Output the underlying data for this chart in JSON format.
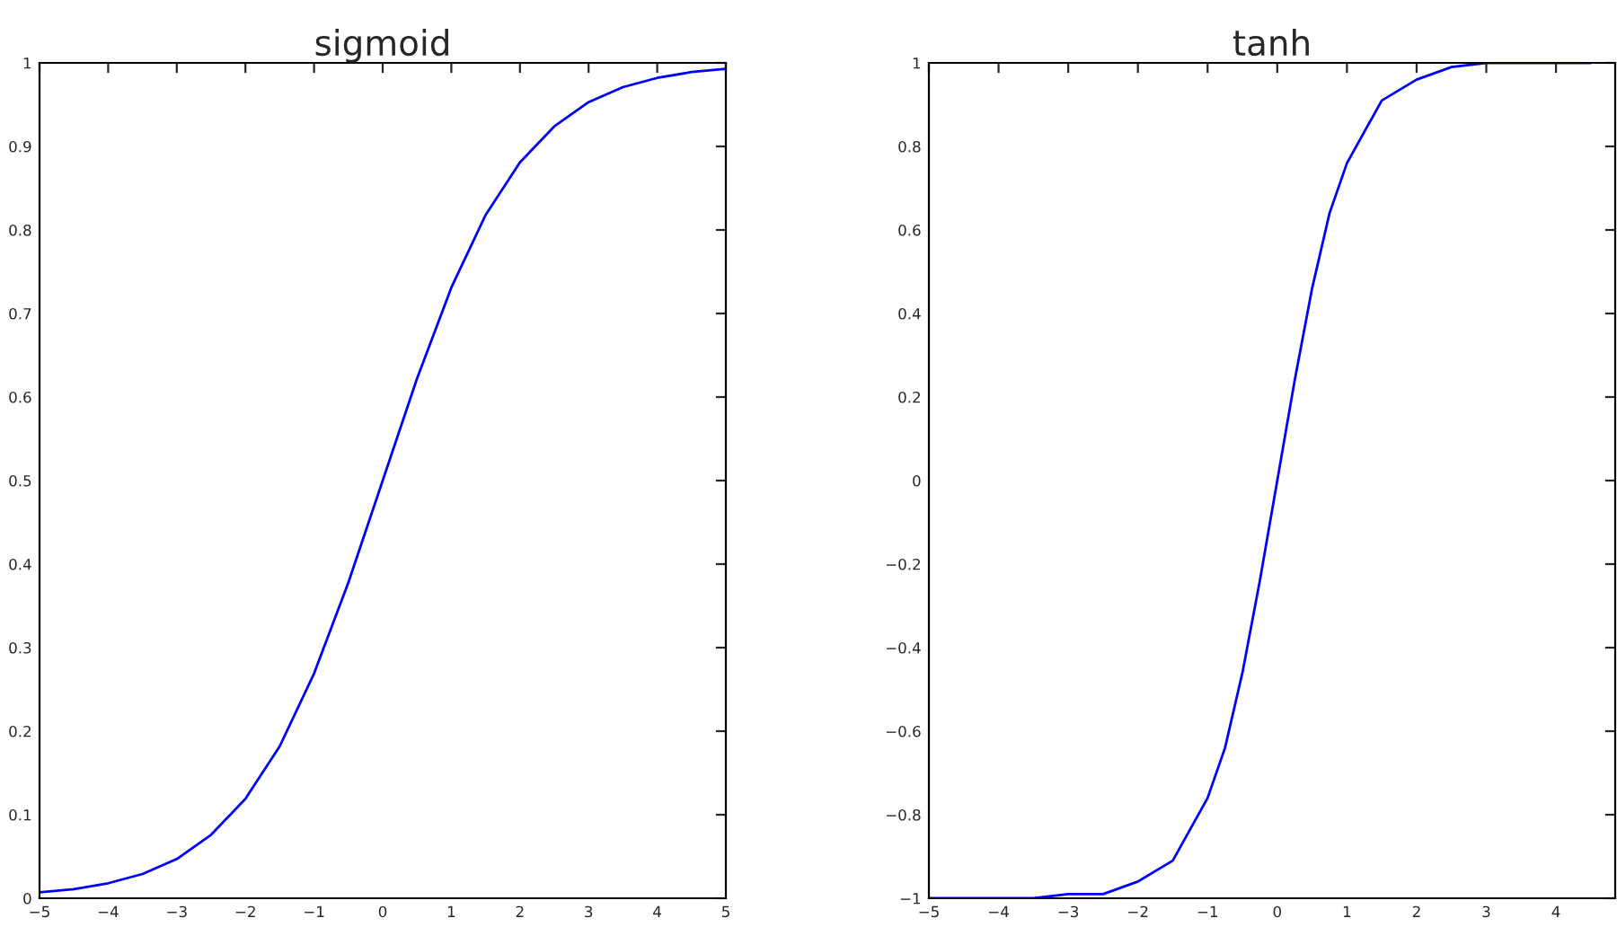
{
  "chart_data": [
    {
      "type": "line",
      "title": "sigmoid",
      "x": [
        -5,
        -4.5,
        -4,
        -3.5,
        -3,
        -2.5,
        -2,
        -1.5,
        -1,
        -0.5,
        0,
        0.5,
        1,
        1.5,
        2,
        2.5,
        3,
        3.5,
        4,
        4.5,
        5
      ],
      "series": [
        {
          "color": "#0000ff",
          "values": [
            0.007,
            0.011,
            0.018,
            0.029,
            0.047,
            0.076,
            0.119,
            0.182,
            0.269,
            0.378,
            0.5,
            0.622,
            0.731,
            0.818,
            0.881,
            0.924,
            0.953,
            0.971,
            0.982,
            0.989,
            0.993
          ]
        }
      ],
      "xlim": [
        -5,
        5
      ],
      "xticks": [
        {
          "value": -5,
          "label": "−5"
        },
        {
          "value": -4,
          "label": "−4"
        },
        {
          "value": -3,
          "label": "−3"
        },
        {
          "value": -2,
          "label": "−2"
        },
        {
          "value": -1,
          "label": "−1"
        },
        0,
        1,
        2,
        3,
        4,
        5
      ],
      "ylim": [
        0,
        1
      ],
      "yticks": [
        0,
        0.1,
        0.2,
        0.3,
        0.4,
        0.5,
        0.6,
        0.7,
        0.8,
        0.9,
        1
      ],
      "grid": false,
      "legend": false
    },
    {
      "type": "line",
      "title": "tanh",
      "x": [
        -5,
        -4.5,
        -4,
        -3.5,
        -3,
        -2.5,
        -2,
        -1.5,
        -1,
        -0.75,
        -0.5,
        -0.25,
        0,
        0.25,
        0.5,
        0.75,
        1,
        1.5,
        2,
        2.5,
        3,
        3.5,
        4,
        4.5
      ],
      "series": [
        {
          "color": "#0000ff",
          "values": [
            -1.0,
            -1.0,
            -1.0,
            -1.0,
            -0.99,
            -0.99,
            -0.96,
            -0.91,
            -0.76,
            -0.64,
            -0.46,
            -0.24,
            0,
            0.24,
            0.46,
            0.64,
            0.76,
            0.91,
            0.96,
            0.99,
            1.0,
            1.0,
            1.0,
            1.0
          ]
        }
      ],
      "xlim": [
        -5,
        4.85
      ],
      "xticks": [
        {
          "value": -5,
          "label": "−5"
        },
        {
          "value": -4,
          "label": "−4"
        },
        {
          "value": -3,
          "label": "−3"
        },
        {
          "value": -2,
          "label": "−2"
        },
        {
          "value": -1,
          "label": "−1"
        },
        0,
        1,
        2,
        3,
        4
      ],
      "ylim": [
        -1,
        1
      ],
      "yticks": [
        {
          "value": -1,
          "label": "−1"
        },
        {
          "value": -0.8,
          "label": "−0.8"
        },
        {
          "value": -0.6,
          "label": "−0.6"
        },
        {
          "value": -0.4,
          "label": "−0.4"
        },
        {
          "value": -0.2,
          "label": "−0.2"
        },
        0,
        0.2,
        0.4,
        0.6,
        0.8,
        1
      ],
      "grid": false,
      "legend": false
    }
  ]
}
